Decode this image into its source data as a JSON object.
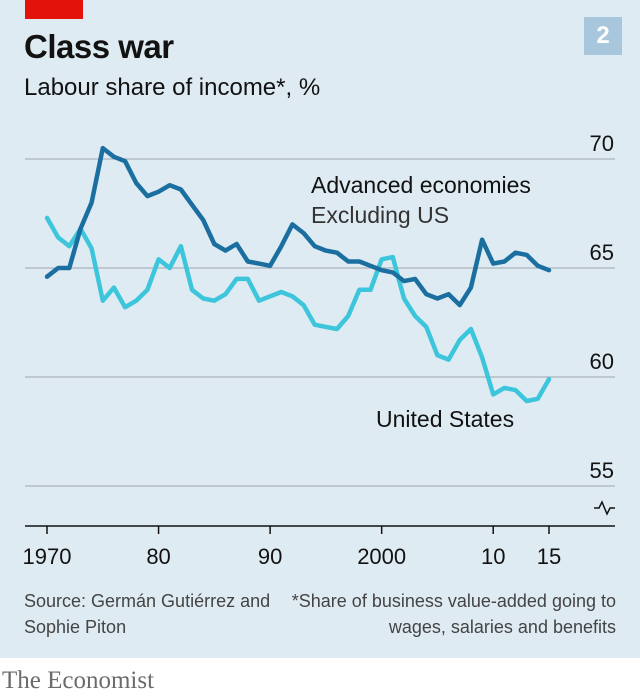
{
  "header": {
    "title": "Class war",
    "subtitle": "Labour share of income*, %",
    "chart_number": "2"
  },
  "footer": {
    "source": "Source: Germán Gutiérrez and Sophie Piton",
    "footnote": "*Share of business value-added going to wages, salaries and benefits",
    "brand": "The Economist"
  },
  "colors": {
    "background": "#dfebf2",
    "advanced": "#1b6fa0",
    "us": "#3dc5dc",
    "brand_red": "#e3120b"
  },
  "chart_data": {
    "type": "line",
    "title": "Class war",
    "subtitle": "Labour share of income*, %",
    "x_range": [
      1970,
      2015
    ],
    "ylim": [
      55,
      70
    ],
    "y_ticks": [
      70,
      65,
      60,
      55
    ],
    "y_tick_labels": [
      "70",
      "65",
      "60",
      "55"
    ],
    "x_ticks": [
      1970,
      1980,
      1990,
      2000,
      2010,
      2015
    ],
    "x_tick_labels": [
      "1970",
      "80",
      "90",
      "2000",
      "10",
      "15"
    ],
    "grid": true,
    "series": [
      {
        "name": "Advanced economies Excluding US",
        "label_line1": "Advanced economies",
        "label_line2": "Excluding US",
        "color": "#1b6fa0",
        "x": [
          1970,
          1971,
          1972,
          1973,
          1974,
          1975,
          1976,
          1977,
          1978,
          1979,
          1980,
          1981,
          1982,
          1983,
          1984,
          1985,
          1986,
          1987,
          1988,
          1989,
          1990,
          1991,
          1992,
          1993,
          1994,
          1995,
          1996,
          1997,
          1998,
          1999,
          2000,
          2001,
          2002,
          2003,
          2004,
          2005,
          2006,
          2007,
          2008,
          2009,
          2010,
          2011,
          2012,
          2013,
          2014,
          2015
        ],
        "y": [
          64.6,
          65.0,
          65.0,
          66.8,
          68.0,
          70.5,
          70.1,
          69.9,
          68.9,
          68.3,
          68.5,
          68.8,
          68.6,
          67.9,
          67.2,
          66.1,
          65.8,
          66.1,
          65.3,
          65.2,
          65.1,
          66.0,
          67.0,
          66.6,
          66.0,
          65.8,
          65.7,
          65.3,
          65.3,
          65.1,
          64.9,
          64.8,
          64.4,
          64.5,
          63.8,
          63.6,
          63.8,
          63.3,
          64.1,
          66.3,
          65.2,
          65.3,
          65.7,
          65.6,
          65.1,
          64.9
        ]
      },
      {
        "name": "United States",
        "label_line1": "United States",
        "color": "#3dc5dc",
        "x": [
          1970,
          1971,
          1972,
          1973,
          1974,
          1975,
          1976,
          1977,
          1978,
          1979,
          1980,
          1981,
          1982,
          1983,
          1984,
          1985,
          1986,
          1987,
          1988,
          1989,
          1990,
          1991,
          1992,
          1993,
          1994,
          1995,
          1996,
          1997,
          1998,
          1999,
          2000,
          2001,
          2002,
          2003,
          2004,
          2005,
          2006,
          2007,
          2008,
          2009,
          2010,
          2011,
          2012,
          2013,
          2014,
          2015
        ],
        "y": [
          67.3,
          66.4,
          66.0,
          66.8,
          65.9,
          63.5,
          64.1,
          63.2,
          63.5,
          64.0,
          65.4,
          65.0,
          66.0,
          64.0,
          63.6,
          63.5,
          63.8,
          64.5,
          64.5,
          63.5,
          63.7,
          63.9,
          63.7,
          63.3,
          62.4,
          62.3,
          62.2,
          62.8,
          64.0,
          64.0,
          65.4,
          65.5,
          63.6,
          62.8,
          62.3,
          61.0,
          60.8,
          61.7,
          62.2,
          60.9,
          59.2,
          59.5,
          59.4,
          58.9,
          59.0,
          59.9
        ]
      }
    ]
  }
}
